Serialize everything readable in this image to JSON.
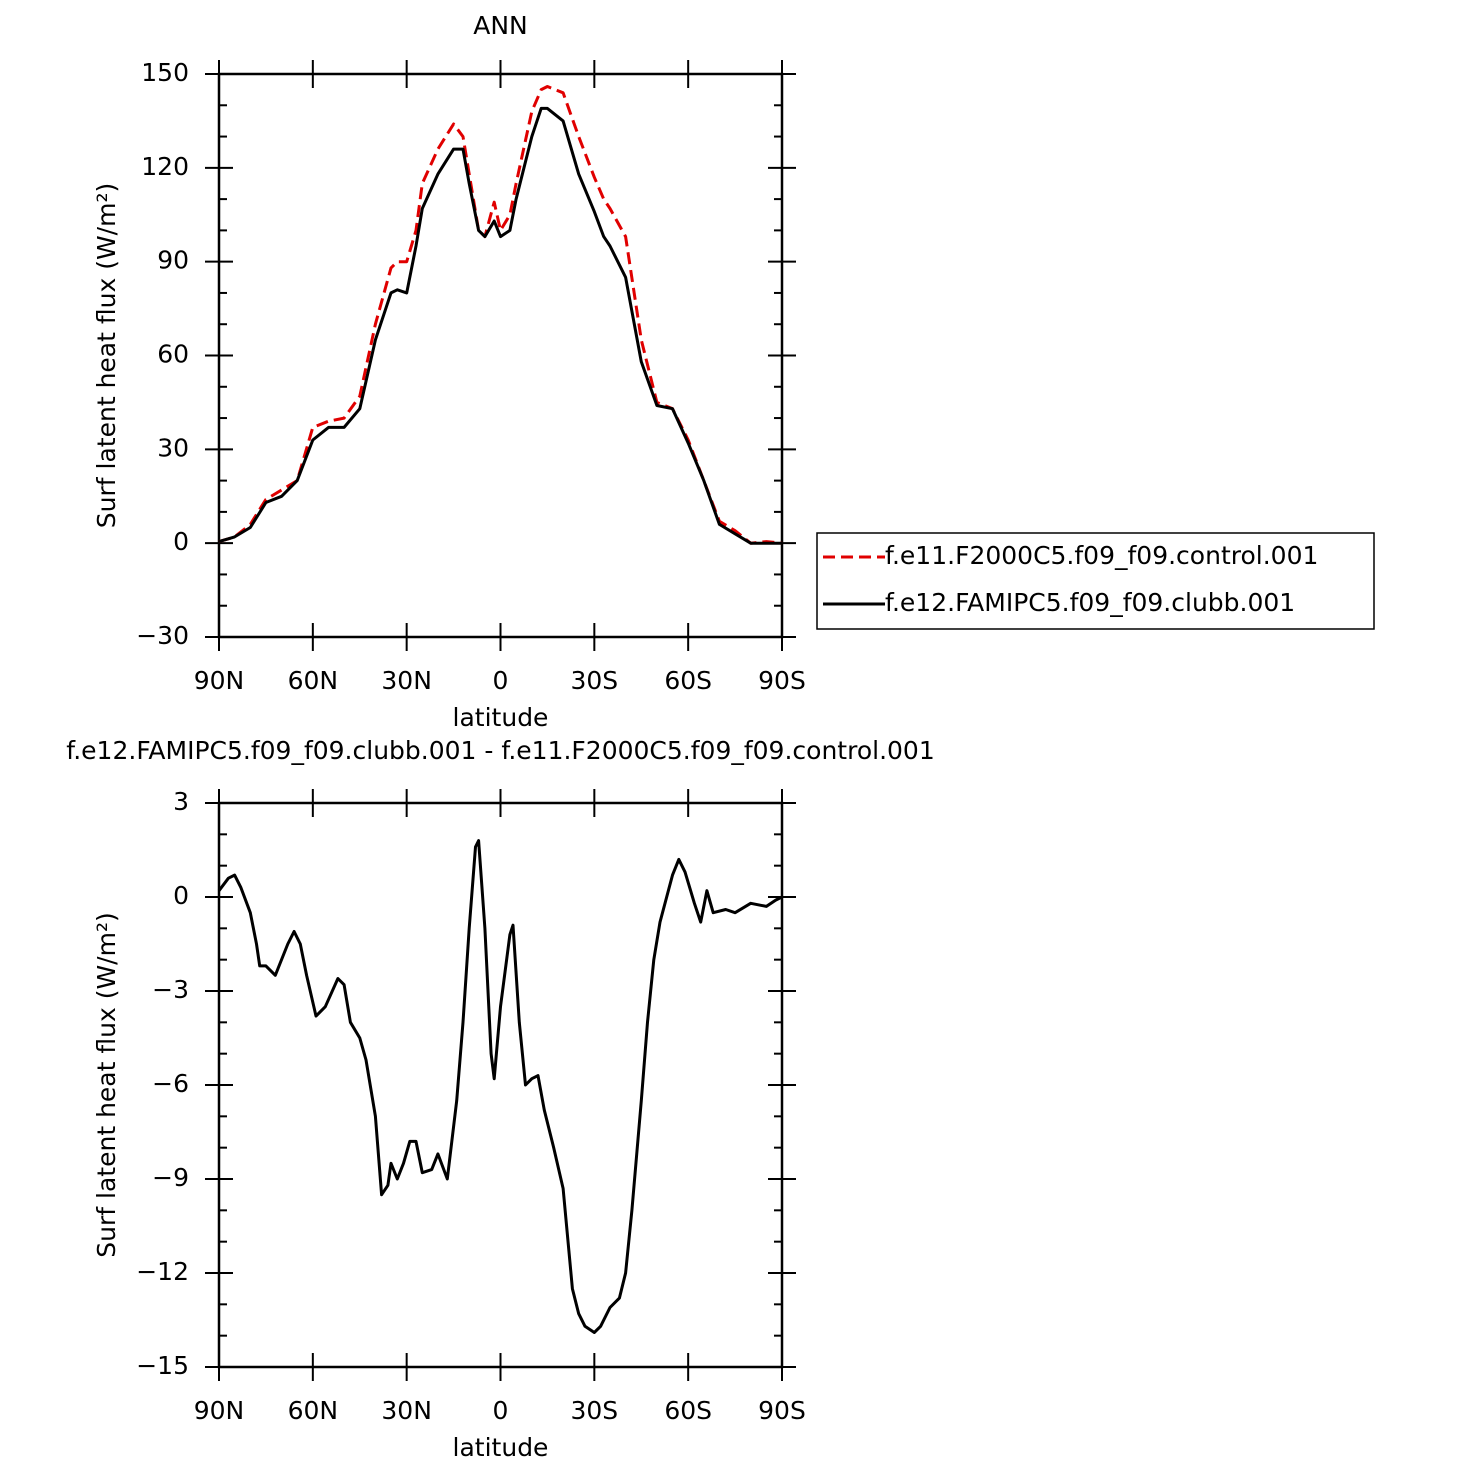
{
  "chart_data": [
    {
      "type": "line",
      "title": "ANN",
      "xlabel": "latitude",
      "ylabel": "Surf latent heat flux (W/m²)",
      "x": [
        90,
        85,
        80,
        75,
        70,
        65,
        60,
        55,
        50,
        45,
        40,
        35,
        33,
        30,
        27,
        25,
        20,
        15,
        12,
        10,
        7,
        5,
        2,
        0,
        -3,
        -5,
        -10,
        -13,
        -15,
        -20,
        -25,
        -30,
        -33,
        -35,
        -40,
        -45,
        -50,
        -55,
        -60,
        -65,
        -70,
        -75,
        -80,
        -85,
        -90
      ],
      "series": [
        {
          "name": "f.e11.F2000C5.f09_f09.control.001",
          "color": "#e00000",
          "linestyle": "dashed",
          "values": [
            0.5,
            2,
            6,
            14,
            17,
            20,
            37,
            39,
            40,
            47,
            70,
            88,
            90,
            90,
            100,
            115,
            126,
            134,
            130,
            118,
            100,
            98,
            109,
            100,
            105,
            115,
            138,
            145,
            146,
            144,
            130,
            117,
            110,
            107,
            98,
            65,
            45,
            43,
            33,
            20,
            7,
            4,
            0,
            0.5,
            0
          ]
        },
        {
          "name": "f.e12.FAMIPC5.f09_f09.clubb.001",
          "color": "#000000",
          "linestyle": "solid",
          "values": [
            0.5,
            2,
            5,
            13,
            15,
            20,
            33,
            37,
            37,
            43,
            65,
            80,
            81,
            80,
            95,
            107,
            118,
            126,
            126,
            115,
            100,
            98,
            103,
            98,
            100,
            110,
            130,
            139,
            139,
            135,
            118,
            106,
            98,
            95,
            85,
            58,
            44,
            43,
            32,
            20,
            6,
            3,
            0,
            0,
            0
          ]
        }
      ],
      "xlim": [
        90,
        -90
      ],
      "xticks": [
        {
          "value": 90,
          "label": "90N"
        },
        {
          "value": 60,
          "label": "60N"
        },
        {
          "value": 30,
          "label": "30N"
        },
        0,
        {
          "value": -30,
          "label": "30S"
        },
        {
          "value": -60,
          "label": "60S"
        },
        {
          "value": -90,
          "label": "90S"
        }
      ],
      "ylim": [
        -30,
        150
      ],
      "yticks": [
        150,
        120,
        90,
        60,
        30,
        0,
        {
          "value": -30,
          "label": "−30"
        }
      ],
      "legend": "outside-right"
    },
    {
      "type": "line",
      "title": "f.e12.FAMIPC5.f09_f09.clubb.001 - f.e11.F2000C5.f09_f09.control.001",
      "xlabel": "latitude",
      "ylabel": "Surf latent heat flux (W/m²)",
      "x": [
        90,
        87,
        85,
        83,
        80,
        78,
        77,
        75,
        72,
        68,
        66,
        64,
        62,
        59,
        56,
        52,
        50,
        48,
        45,
        43,
        40,
        38,
        36,
        35,
        33,
        31,
        29,
        27,
        25,
        22,
        20,
        17,
        14,
        12,
        10,
        8,
        7,
        5,
        3,
        2,
        0,
        -3,
        -4,
        -6,
        -8,
        -10,
        -12,
        -14,
        -17,
        -20,
        -23,
        -25,
        -27,
        -30,
        -32,
        -35,
        -38,
        -40,
        -42,
        -45,
        -47,
        -49,
        -51,
        -55,
        -57,
        -59,
        -62,
        -64,
        -66,
        -68,
        -72,
        -75,
        -80,
        -85,
        -88,
        -90
      ],
      "series": [
        {
          "color": "#000000",
          "linestyle": "solid",
          "values": [
            0.2,
            0.6,
            0.7,
            0.3,
            -0.5,
            -1.5,
            -2.2,
            -2.2,
            -2.5,
            -1.5,
            -1.1,
            -1.5,
            -2.5,
            -3.8,
            -3.5,
            -2.6,
            -2.8,
            -4.0,
            -4.5,
            -5.2,
            -7.0,
            -9.5,
            -9.2,
            -8.5,
            -9.0,
            -8.5,
            -7.8,
            -7.8,
            -8.8,
            -8.7,
            -8.2,
            -9.0,
            -6.5,
            -4.0,
            -1.0,
            1.6,
            1.8,
            -1.0,
            -5.0,
            -5.8,
            -3.5,
            -1.2,
            -0.9,
            -4.0,
            -6.0,
            -5.8,
            -5.7,
            -6.8,
            -8.0,
            -9.3,
            -12.5,
            -13.3,
            -13.7,
            -13.9,
            -13.7,
            -13.1,
            -12.8,
            -12.0,
            -10.0,
            -6.5,
            -4.0,
            -2.0,
            -0.8,
            0.7,
            1.2,
            0.8,
            -0.2,
            -0.8,
            0.2,
            -0.5,
            -0.4,
            -0.5,
            -0.2,
            -0.3,
            -0.1,
            0
          ]
        }
      ],
      "xlim": [
        90,
        -90
      ],
      "xticks": [
        {
          "value": 90,
          "label": "90N"
        },
        {
          "value": 60,
          "label": "60N"
        },
        {
          "value": 30,
          "label": "30N"
        },
        0,
        {
          "value": -30,
          "label": "30S"
        },
        {
          "value": -60,
          "label": "60S"
        },
        {
          "value": -90,
          "label": "90S"
        }
      ],
      "ylim": [
        -15,
        3
      ],
      "yticks": [
        3,
        0,
        {
          "value": -3,
          "label": "−3"
        },
        {
          "value": -6,
          "label": "−6"
        },
        {
          "value": -9,
          "label": "−9"
        },
        {
          "value": -12,
          "label": "−12"
        },
        {
          "value": -15,
          "label": "−15"
        }
      ]
    }
  ]
}
